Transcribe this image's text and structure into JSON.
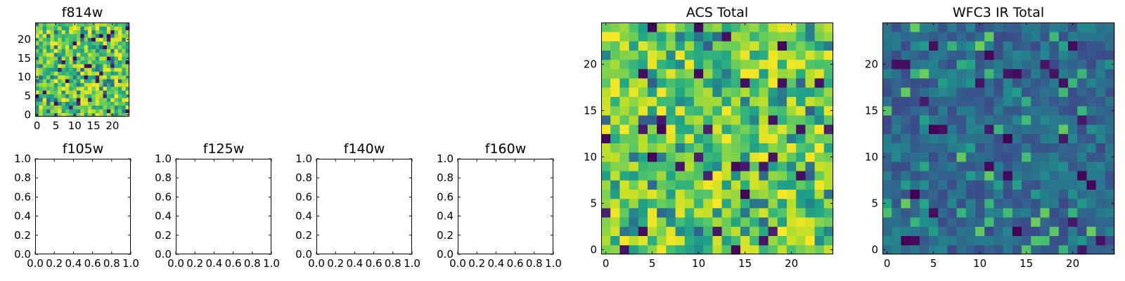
{
  "chart_data": [
    {
      "type": "heatmap",
      "title": "f814w",
      "xticks": [
        "0",
        "5",
        "10",
        "15",
        "20"
      ],
      "yticks": [
        "0",
        "5",
        "10",
        "15",
        "20"
      ],
      "xlim": [
        -0.5,
        24.5
      ],
      "ylim": [
        -0.5,
        24.5
      ],
      "grid": false,
      "cmap": "viridis",
      "values": {
        "shape": [
          25,
          25
        ],
        "seed": 814,
        "dist": "high",
        "note_values_generated": true
      }
    },
    {
      "type": "scatter",
      "title": "f105w",
      "xticks": [
        "0.0",
        "0.2",
        "0.4",
        "0.6",
        "0.8",
        "1.0"
      ],
      "yticks": [
        "0.0",
        "0.2",
        "0.4",
        "0.6",
        "0.8",
        "1.0"
      ],
      "xlim": [
        0,
        1
      ],
      "ylim": [
        0,
        1
      ],
      "series": []
    },
    {
      "type": "scatter",
      "title": "f125w",
      "xticks": [
        "0.0",
        "0.2",
        "0.4",
        "0.6",
        "0.8",
        "1.0"
      ],
      "yticks": [
        "0.0",
        "0.2",
        "0.4",
        "0.6",
        "0.8",
        "1.0"
      ],
      "xlim": [
        0,
        1
      ],
      "ylim": [
        0,
        1
      ],
      "series": []
    },
    {
      "type": "scatter",
      "title": "f140w",
      "xticks": [
        "0.0",
        "0.2",
        "0.4",
        "0.6",
        "0.8",
        "1.0"
      ],
      "yticks": [
        "0.0",
        "0.2",
        "0.4",
        "0.6",
        "0.8",
        "1.0"
      ],
      "xlim": [
        0,
        1
      ],
      "ylim": [
        0,
        1
      ],
      "series": []
    },
    {
      "type": "scatter",
      "title": "f160w",
      "xticks": [
        "0.0",
        "0.2",
        "0.4",
        "0.6",
        "0.8",
        "1.0"
      ],
      "yticks": [
        "0.0",
        "0.2",
        "0.4",
        "0.6",
        "0.8",
        "1.0"
      ],
      "xlim": [
        0,
        1
      ],
      "ylim": [
        0,
        1
      ],
      "series": []
    },
    {
      "type": "heatmap",
      "title": "ACS Total",
      "xticks": [
        "0",
        "5",
        "10",
        "15",
        "20"
      ],
      "yticks": [
        "0",
        "5",
        "10",
        "15",
        "20"
      ],
      "xlim": [
        -0.5,
        24.5
      ],
      "ylim": [
        -0.5,
        24.5
      ],
      "grid": false,
      "cmap": "viridis",
      "values": {
        "shape": [
          25,
          25
        ],
        "seed": 1701,
        "dist": "high"
      }
    },
    {
      "type": "heatmap",
      "title": "WFC3 IR Total",
      "xticks": [
        "0",
        "5",
        "10",
        "15",
        "20"
      ],
      "yticks": [
        "0",
        "5",
        "10",
        "15",
        "20"
      ],
      "xlim": [
        -0.5,
        24.5
      ],
      "ylim": [
        -0.5,
        24.5
      ],
      "grid": false,
      "cmap": "viridis",
      "values": {
        "shape": [
          25,
          25
        ],
        "seed": 3112,
        "dist": "low"
      }
    }
  ]
}
